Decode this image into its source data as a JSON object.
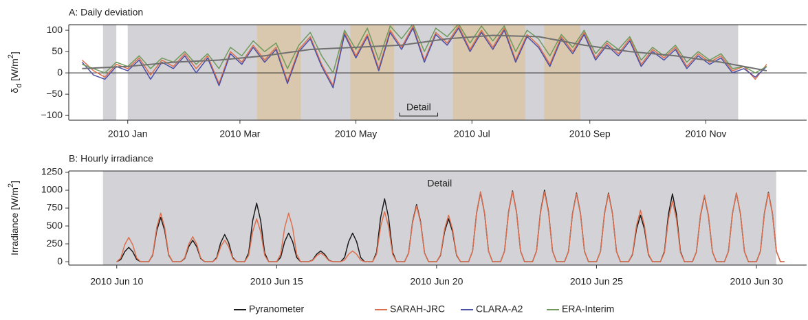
{
  "chart_data": [
    {
      "type": "line",
      "title": "A: Daily deviation",
      "ylabel": [
        "δ",
        "d",
        " [W/m",
        "2",
        "]"
      ],
      "xlim": [
        -31,
        357
      ],
      "xticks": [
        {
          "value": 0,
          "label": "2010 Jan"
        },
        {
          "value": 59,
          "label": "2010 Mar"
        },
        {
          "value": 120,
          "label": "2010 May"
        },
        {
          "value": 181,
          "label": "2010 Jul"
        },
        {
          "value": 243,
          "label": "2010 Sep"
        },
        {
          "value": 304,
          "label": "2010 Nov"
        }
      ],
      "ylim": [
        -111,
        113
      ],
      "yticks": [
        {
          "value": -100,
          "label": "−100"
        },
        {
          "value": -50,
          "label": "−50"
        },
        0,
        50,
        100
      ],
      "hline": 0,
      "gray_periods": [
        [
          -13,
          -6
        ],
        [
          0,
          321
        ]
      ],
      "highlight_periods": [
        [
          68,
          91
        ],
        [
          117,
          140
        ],
        [
          171,
          209
        ],
        [
          219,
          238
        ]
      ],
      "annotation": {
        "text": "Detail",
        "range": [
          143,
          163
        ]
      },
      "x": [
        -24,
        -18,
        -12,
        -6,
        0,
        6,
        12,
        18,
        24,
        30,
        36,
        42,
        48,
        54,
        60,
        66,
        72,
        78,
        84,
        90,
        96,
        102,
        108,
        114,
        120,
        126,
        132,
        138,
        144,
        150,
        156,
        162,
        168,
        174,
        180,
        186,
        192,
        198,
        204,
        210,
        216,
        222,
        228,
        234,
        240,
        246,
        252,
        258,
        264,
        270,
        276,
        282,
        288,
        294,
        300,
        306,
        312,
        318,
        324,
        330,
        336
      ],
      "series": [
        {
          "name": "SARAH-JRC",
          "color": "#de6f4e",
          "values": [
            30,
            5,
            -10,
            20,
            10,
            35,
            -5,
            30,
            15,
            45,
            10,
            40,
            -25,
            50,
            25,
            65,
            30,
            60,
            -20,
            55,
            85,
            20,
            -30,
            95,
            40,
            90,
            10,
            100,
            60,
            110,
            30,
            95,
            70,
            110,
            55,
            100,
            60,
            105,
            30,
            90,
            65,
            20,
            85,
            50,
            95,
            35,
            70,
            45,
            80,
            20,
            55,
            35,
            60,
            15,
            45,
            25,
            40,
            5,
            15,
            -15,
            20
          ]
        },
        {
          "name": "CLARA-A2",
          "color": "#4c4fa6",
          "values": [
            25,
            -5,
            -15,
            15,
            5,
            30,
            -15,
            25,
            10,
            40,
            0,
            35,
            -30,
            45,
            20,
            60,
            25,
            55,
            -25,
            50,
            80,
            15,
            -35,
            90,
            35,
            85,
            5,
            95,
            55,
            105,
            25,
            90,
            65,
            105,
            50,
            95,
            55,
            100,
            25,
            85,
            60,
            15,
            80,
            45,
            90,
            30,
            65,
            40,
            75,
            15,
            50,
            30,
            55,
            10,
            40,
            20,
            35,
            0,
            10,
            -10,
            15
          ]
        },
        {
          "name": "ERA-Interim",
          "color": "#6f9a5c",
          "values": [
            20,
            10,
            0,
            25,
            15,
            40,
            10,
            35,
            25,
            50,
            20,
            45,
            10,
            60,
            40,
            75,
            50,
            70,
            10,
            65,
            95,
            40,
            0,
            100,
            55,
            105,
            30,
            110,
            80,
            115,
            50,
            105,
            85,
            115,
            70,
            110,
            75,
            110,
            50,
            100,
            80,
            40,
            90,
            60,
            100,
            45,
            75,
            55,
            85,
            30,
            60,
            40,
            65,
            25,
            50,
            30,
            45,
            10,
            15,
            0,
            15
          ]
        }
      ],
      "trend": {
        "color": "#707070",
        "x": [
          -24,
          0,
          24,
          48,
          72,
          96,
          120,
          144,
          168,
          192,
          216,
          240,
          264,
          288,
          312,
          336
        ],
        "values": [
          10,
          15,
          25,
          30,
          40,
          55,
          60,
          65,
          80,
          88,
          85,
          65,
          50,
          40,
          25,
          5
        ]
      }
    },
    {
      "type": "line",
      "title": "B: Hourly irradiance",
      "ylabel": [
        "Irradiance [W/m",
        "2",
        "]"
      ],
      "xlim": [
        8.5,
        31.57
      ],
      "xticks": [
        {
          "value": 10,
          "label": "2010 Jun 10"
        },
        {
          "value": 15,
          "label": "2010 Jun 15"
        },
        {
          "value": 20,
          "label": "2010 Jun 20"
        },
        {
          "value": 25,
          "label": "2010 Jun 25"
        },
        {
          "value": 30,
          "label": "2010 Jun 30"
        }
      ],
      "ylim": [
        -47,
        1269
      ],
      "yticks": [
        0,
        250,
        500,
        750,
        1000,
        1250
      ],
      "gray_periods": [
        [
          9.57,
          30.62
        ]
      ],
      "annotation": {
        "text": "Detail"
      },
      "x": [
        10,
        10.125,
        10.25,
        10.375,
        10.5,
        10.625,
        10.75,
        10.875,
        11,
        11.125,
        11.25,
        11.375,
        11.5,
        11.625,
        11.75,
        11.875,
        12,
        12.125,
        12.25,
        12.375,
        12.5,
        12.625,
        12.75,
        12.875,
        13,
        13.125,
        13.25,
        13.375,
        13.5,
        13.625,
        13.75,
        13.875,
        14,
        14.125,
        14.25,
        14.375,
        14.5,
        14.625,
        14.75,
        14.875,
        15,
        15.125,
        15.25,
        15.375,
        15.5,
        15.625,
        15.75,
        15.875,
        16,
        16.125,
        16.25,
        16.375,
        16.5,
        16.625,
        16.75,
        16.875,
        17,
        17.125,
        17.25,
        17.375,
        17.5,
        17.625,
        17.75,
        17.875,
        18,
        18.125,
        18.25,
        18.375,
        18.5,
        18.625,
        18.75,
        18.875,
        19,
        19.125,
        19.25,
        19.375,
        19.5,
        19.625,
        19.75,
        19.875,
        20,
        20.125,
        20.25,
        20.375,
        20.5,
        20.625,
        20.75,
        20.875,
        21,
        21.125,
        21.25,
        21.375,
        21.5,
        21.625,
        21.75,
        21.875,
        22,
        22.125,
        22.25,
        22.375,
        22.5,
        22.625,
        22.75,
        22.875,
        23,
        23.125,
        23.25,
        23.375,
        23.5,
        23.625,
        23.75,
        23.875,
        24,
        24.125,
        24.25,
        24.375,
        24.5,
        24.625,
        24.75,
        24.875,
        25,
        25.125,
        25.25,
        25.375,
        25.5,
        25.625,
        25.75,
        25.875,
        26,
        26.125,
        26.25,
        26.375,
        26.5,
        26.625,
        26.75,
        26.875,
        27,
        27.125,
        27.25,
        27.375,
        27.5,
        27.625,
        27.75,
        27.875,
        28,
        28.125,
        28.25,
        28.375,
        28.5,
        28.625,
        28.75,
        28.875,
        29,
        29.125,
        29.25,
        29.375,
        29.5,
        29.625,
        29.75,
        29.875,
        30,
        30.125,
        30.25,
        30.375,
        30.5,
        30.625,
        30.75,
        30.875
      ],
      "series": [
        {
          "name": "Pyranometer",
          "color": "#1a1a1a",
          "values": [
            0,
            30,
            140,
            200,
            140,
            30,
            0,
            0,
            0,
            93,
            434,
            620,
            434,
            93,
            0,
            0,
            0,
            45,
            210,
            300,
            210,
            45,
            0,
            0,
            0,
            57,
            266,
            380,
            266,
            57,
            0,
            0,
            0,
            123,
            574,
            820,
            574,
            123,
            0,
            0,
            0,
            60,
            280,
            400,
            280,
            60,
            0,
            0,
            0,
            23,
            105,
            150,
            105,
            23,
            0,
            0,
            0,
            60,
            280,
            400,
            280,
            60,
            0,
            0,
            0,
            132,
            616,
            880,
            616,
            132,
            0,
            0,
            0,
            120,
            560,
            800,
            560,
            120,
            0,
            0,
            0,
            90,
            420,
            600,
            420,
            90,
            0,
            0,
            0,
            146,
            679,
            970,
            679,
            146,
            0,
            0,
            0,
            149,
            693,
            990,
            693,
            149,
            0,
            0,
            0,
            150,
            700,
            1000,
            700,
            150,
            0,
            0,
            0,
            144,
            672,
            960,
            672,
            144,
            0,
            0,
            0,
            144,
            672,
            960,
            672,
            144,
            0,
            0,
            0,
            98,
            455,
            650,
            455,
            98,
            0,
            0,
            0,
            143,
            665,
            950,
            665,
            143,
            0,
            0,
            0,
            138,
            644,
            920,
            644,
            138,
            0,
            0,
            0,
            144,
            672,
            960,
            672,
            144,
            0,
            0,
            0,
            146,
            679,
            970,
            679,
            146,
            0,
            0
          ]
        },
        {
          "name": "SARAH-JRC",
          "color": "#de6f4e",
          "values": [
            0,
            51,
            238,
            340,
            238,
            51,
            0,
            0,
            0,
            102,
            476,
            680,
            476,
            102,
            0,
            0,
            0,
            53,
            245,
            350,
            245,
            53,
            0,
            0,
            0,
            45,
            210,
            300,
            210,
            45,
            0,
            0,
            0,
            90,
            420,
            600,
            420,
            90,
            0,
            0,
            0,
            102,
            476,
            680,
            476,
            102,
            0,
            0,
            0,
            18,
            84,
            120,
            84,
            18,
            0,
            0,
            0,
            23,
            105,
            150,
            105,
            23,
            0,
            0,
            0,
            105,
            490,
            700,
            490,
            105,
            0,
            0,
            0,
            117,
            546,
            780,
            546,
            117,
            0,
            0,
            0,
            98,
            455,
            650,
            455,
            98,
            0,
            0,
            0,
            147,
            686,
            980,
            686,
            147,
            0,
            0,
            0,
            147,
            686,
            980,
            686,
            147,
            0,
            0,
            0,
            147,
            686,
            980,
            686,
            147,
            0,
            0,
            0,
            143,
            665,
            950,
            665,
            143,
            0,
            0,
            0,
            143,
            665,
            950,
            665,
            143,
            0,
            0,
            0,
            108,
            504,
            720,
            504,
            108,
            0,
            0,
            0,
            128,
            595,
            850,
            595,
            128,
            0,
            0,
            0,
            140,
            651,
            930,
            651,
            140,
            0,
            0,
            0,
            144,
            672,
            960,
            672,
            144,
            0,
            0,
            0,
            144,
            672,
            960,
            672,
            144,
            0,
            0
          ]
        }
      ]
    }
  ]
}
